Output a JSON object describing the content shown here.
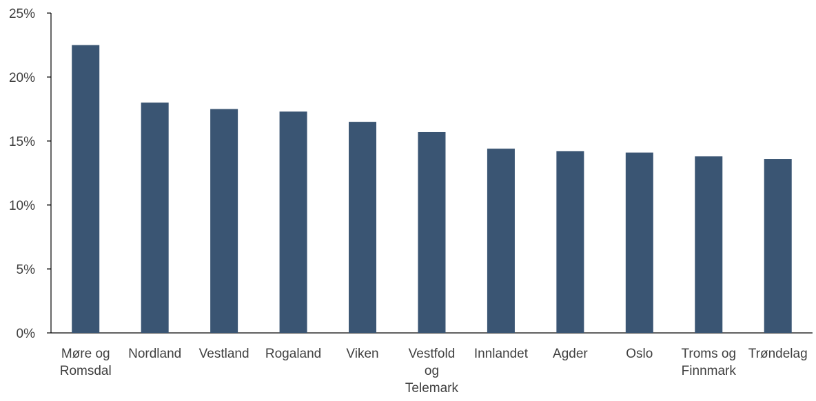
{
  "chart_data": {
    "type": "bar",
    "categories": [
      "Møre og Romsdal",
      "Nordland",
      "Vestland",
      "Rogaland",
      "Viken",
      "Vestfold og Telemark",
      "Innlandet",
      "Agder",
      "Oslo",
      "Troms og Finnmark",
      "Trøndelag"
    ],
    "category_lines": [
      [
        "Møre og",
        "Romsdal"
      ],
      [
        "Nordland"
      ],
      [
        "Vestland"
      ],
      [
        "Rogaland"
      ],
      [
        "Viken"
      ],
      [
        "Vestfold",
        "og",
        "Telemark"
      ],
      [
        "Innlandet"
      ],
      [
        "Agder"
      ],
      [
        "Oslo"
      ],
      [
        "Troms og",
        "Finnmark"
      ],
      [
        "Trøndelag"
      ]
    ],
    "values": [
      22.5,
      18.0,
      17.5,
      17.3,
      16.5,
      15.7,
      14.4,
      14.2,
      14.1,
      13.8,
      13.6
    ],
    "ylim": [
      0,
      25
    ],
    "yticks": [
      0,
      5,
      10,
      15,
      20,
      25
    ],
    "ytick_labels": [
      "0%",
      "5%",
      "10%",
      "15%",
      "20%",
      "25%"
    ],
    "title": "",
    "xlabel": "",
    "ylabel": "",
    "grid": false,
    "bar_color": "#3a5573"
  }
}
